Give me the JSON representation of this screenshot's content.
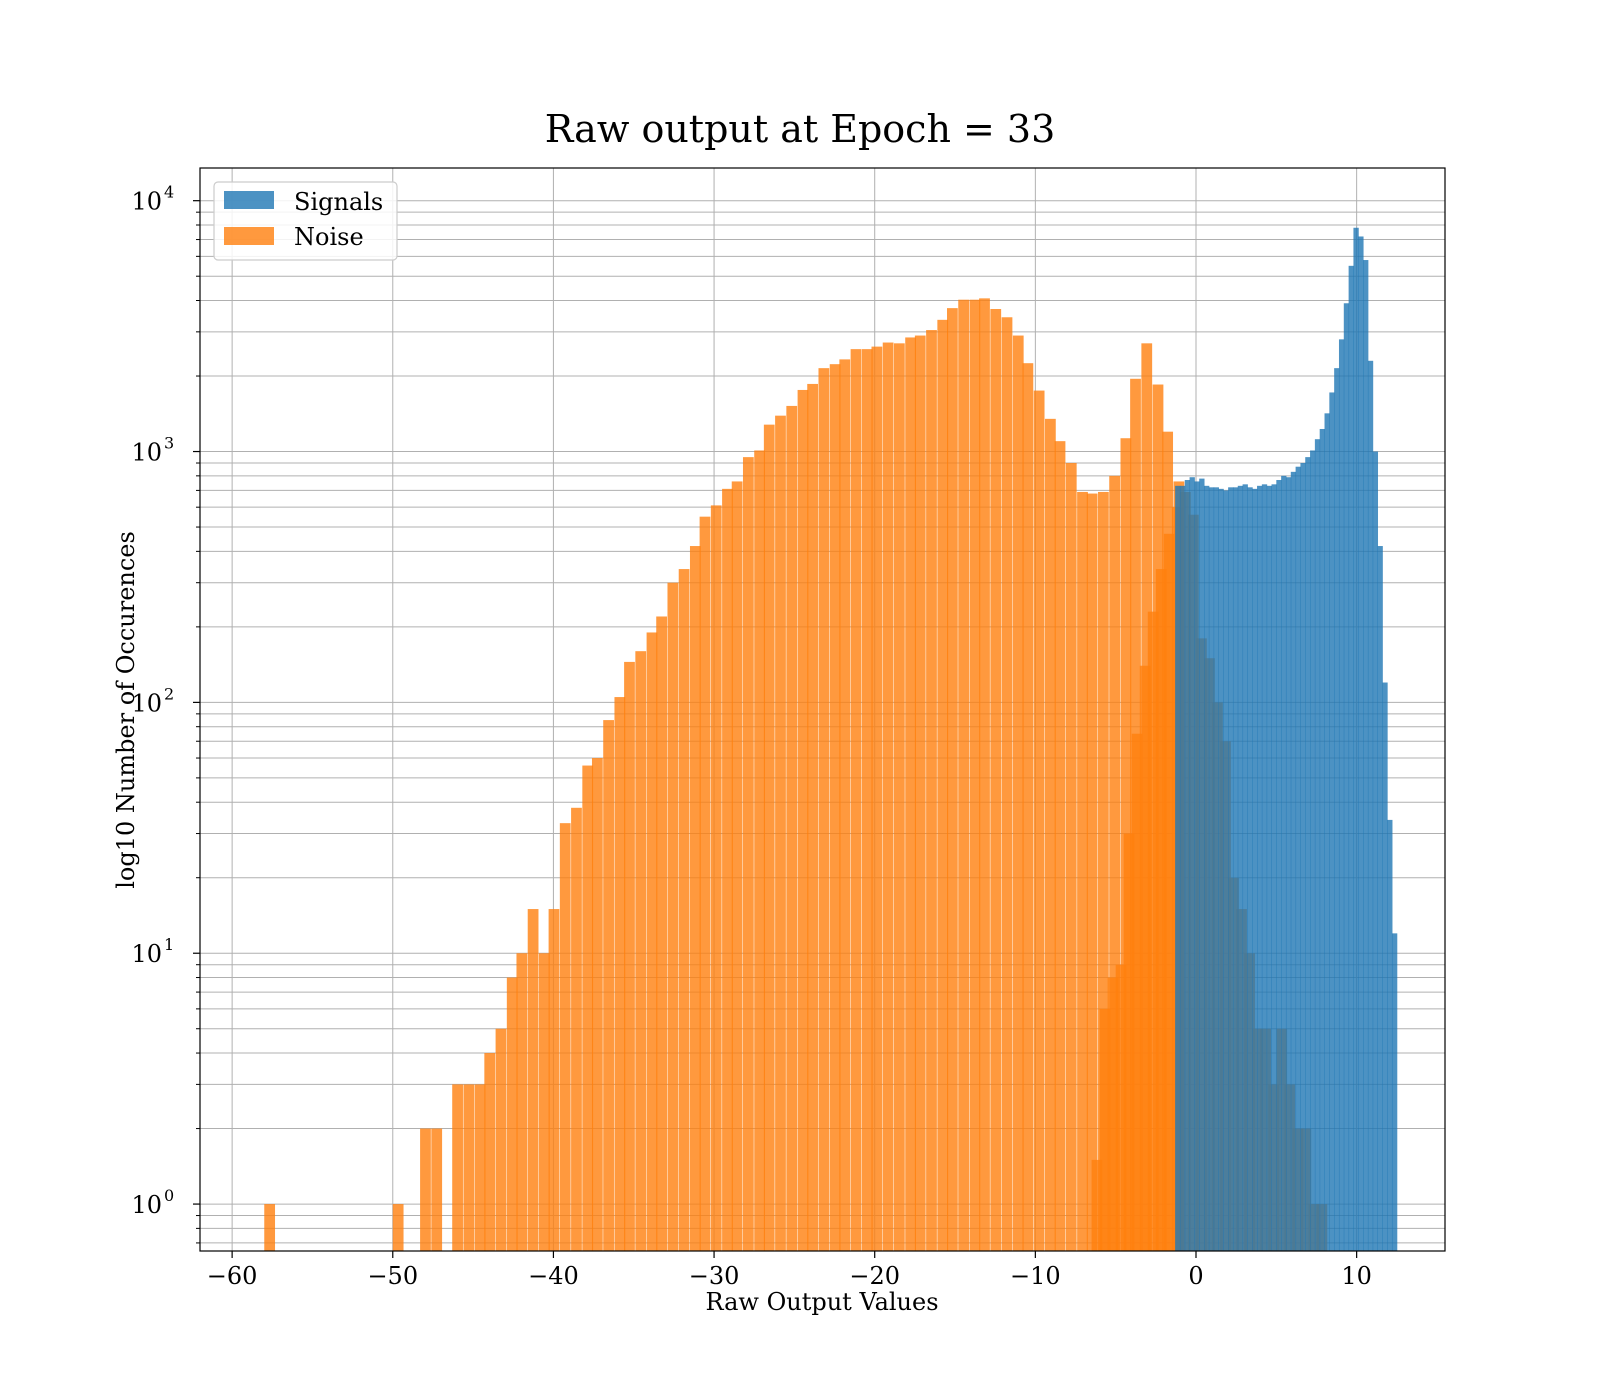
{
  "chart_data": {
    "type": "bar",
    "title": "Raw output at Epoch = 33",
    "xlabel": "Raw Output Values",
    "ylabel": "log10 Number of Occurences",
    "xlim": [
      -62,
      15.5
    ],
    "ylim": [
      0.65,
      13500
    ],
    "yscale": "log",
    "grid": true,
    "legend_position": "top-left",
    "x_ticks": [
      -60,
      -50,
      -40,
      -30,
      -20,
      -10,
      0,
      10
    ],
    "x_tick_labels": [
      "−60",
      "−50",
      "−40",
      "−30",
      "−20",
      "−10",
      "0",
      "10"
    ],
    "y_ticks": [
      1,
      10,
      100,
      1000,
      10000
    ],
    "y_tick_bases": [
      "10",
      "10",
      "10",
      "10",
      "10"
    ],
    "y_tick_exps": [
      "0",
      "1",
      "2",
      "3",
      "4"
    ],
    "series": [
      {
        "name": "Noise",
        "color": "#ff7f0e",
        "bin_width": 0.67,
        "bins": [
          [
            -58.0,
            1
          ],
          [
            -50.0,
            1
          ],
          [
            -48.3,
            2
          ],
          [
            -47.6,
            2
          ],
          [
            -46.3,
            3
          ],
          [
            -45.6,
            3
          ],
          [
            -44.9,
            3
          ],
          [
            -44.3,
            4
          ],
          [
            -43.6,
            5
          ],
          [
            -42.9,
            8
          ],
          [
            -42.3,
            10
          ],
          [
            -41.6,
            15
          ],
          [
            -40.9,
            10
          ],
          [
            -40.3,
            15
          ],
          [
            -39.6,
            33
          ],
          [
            -38.9,
            38
          ],
          [
            -38.2,
            56
          ],
          [
            -37.6,
            60
          ],
          [
            -36.9,
            85
          ],
          [
            -36.2,
            105
          ],
          [
            -35.6,
            145
          ],
          [
            -34.9,
            160
          ],
          [
            -34.2,
            190
          ],
          [
            -33.6,
            220
          ],
          [
            -32.9,
            300
          ],
          [
            -32.2,
            340
          ],
          [
            -31.5,
            420
          ],
          [
            -30.9,
            550
          ],
          [
            -30.2,
            610
          ],
          [
            -29.5,
            710
          ],
          [
            -28.9,
            760
          ],
          [
            -28.2,
            950
          ],
          [
            -27.5,
            1010
          ],
          [
            -26.9,
            1280
          ],
          [
            -26.2,
            1390
          ],
          [
            -25.5,
            1520
          ],
          [
            -24.8,
            1760
          ],
          [
            -24.2,
            1860
          ],
          [
            -23.5,
            2150
          ],
          [
            -22.8,
            2230
          ],
          [
            -22.2,
            2330
          ],
          [
            -21.5,
            2560
          ],
          [
            -20.8,
            2560
          ],
          [
            -20.2,
            2620
          ],
          [
            -19.5,
            2720
          ],
          [
            -18.8,
            2700
          ],
          [
            -18.1,
            2850
          ],
          [
            -17.5,
            2900
          ],
          [
            -16.8,
            3050
          ],
          [
            -16.1,
            3350
          ],
          [
            -15.5,
            3730
          ],
          [
            -14.8,
            4030
          ],
          [
            -14.1,
            4030
          ],
          [
            -13.5,
            4080
          ],
          [
            -12.8,
            3700
          ],
          [
            -12.1,
            3430
          ],
          [
            -11.4,
            2900
          ],
          [
            -10.8,
            2250
          ],
          [
            -10.1,
            1750
          ],
          [
            -9.4,
            1350
          ],
          [
            -8.8,
            1100
          ],
          [
            -8.1,
            900
          ],
          [
            -7.4,
            690
          ],
          [
            -6.8,
            680
          ],
          [
            -6.1,
            690
          ],
          [
            -5.4,
            800
          ],
          [
            -4.7,
            1130
          ],
          [
            -4.1,
            1950
          ],
          [
            -3.4,
            2700
          ],
          [
            -2.7,
            1850
          ],
          [
            -2.1,
            1200
          ],
          [
            -1.4,
            760
          ],
          [
            -6.5,
            1.5
          ],
          [
            -6.0,
            6
          ],
          [
            -5.5,
            8
          ],
          [
            -5.0,
            9
          ],
          [
            -4.5,
            30
          ],
          [
            -4.0,
            75
          ],
          [
            -3.5,
            140
          ],
          [
            -3.0,
            230
          ],
          [
            -2.5,
            340
          ],
          [
            -2.0,
            470
          ],
          [
            -1.5,
            600
          ],
          [
            -1.0,
            690
          ],
          [
            -0.5,
            560
          ],
          [
            0.0,
            180
          ],
          [
            0.5,
            150
          ],
          [
            1.0,
            100
          ],
          [
            1.5,
            70
          ],
          [
            2.0,
            20
          ],
          [
            2.5,
            15
          ],
          [
            3.0,
            10
          ],
          [
            3.5,
            5
          ],
          [
            4.0,
            5
          ],
          [
            4.5,
            3
          ],
          [
            5.0,
            5
          ],
          [
            5.5,
            3
          ],
          [
            6.0,
            2
          ],
          [
            6.5,
            2
          ],
          [
            7.0,
            1
          ],
          [
            7.5,
            1
          ]
        ]
      },
      {
        "name": "Signals",
        "color": "#1f77b4",
        "bin_width": 0.33,
        "bins": [
          [
            -1.3,
            730
          ],
          [
            -1.0,
            730
          ],
          [
            -0.7,
            770
          ],
          [
            -0.4,
            790
          ],
          [
            -0.1,
            760
          ],
          [
            0.2,
            780
          ],
          [
            0.5,
            730
          ],
          [
            0.8,
            720
          ],
          [
            1.1,
            720
          ],
          [
            1.4,
            710
          ],
          [
            1.7,
            700
          ],
          [
            2.0,
            720
          ],
          [
            2.3,
            720
          ],
          [
            2.6,
            730
          ],
          [
            2.9,
            740
          ],
          [
            3.2,
            720
          ],
          [
            3.5,
            710
          ],
          [
            3.8,
            730
          ],
          [
            4.1,
            740
          ],
          [
            4.4,
            730
          ],
          [
            4.7,
            740
          ],
          [
            5.0,
            770
          ],
          [
            5.3,
            800
          ],
          [
            5.6,
            790
          ],
          [
            5.9,
            830
          ],
          [
            6.2,
            870
          ],
          [
            6.5,
            900
          ],
          [
            6.8,
            950
          ],
          [
            7.1,
            1010
          ],
          [
            7.4,
            1120
          ],
          [
            7.7,
            1230
          ],
          [
            8.0,
            1420
          ],
          [
            8.3,
            1720
          ],
          [
            8.6,
            2150
          ],
          [
            8.9,
            2800
          ],
          [
            9.2,
            3900
          ],
          [
            9.5,
            5500
          ],
          [
            9.8,
            7800
          ],
          [
            10.1,
            7200
          ],
          [
            10.4,
            5800
          ],
          [
            10.7,
            2300
          ],
          [
            11.0,
            1000
          ],
          [
            11.3,
            420
          ],
          [
            11.6,
            120
          ],
          [
            11.9,
            34
          ],
          [
            12.2,
            12
          ]
        ]
      }
    ]
  }
}
